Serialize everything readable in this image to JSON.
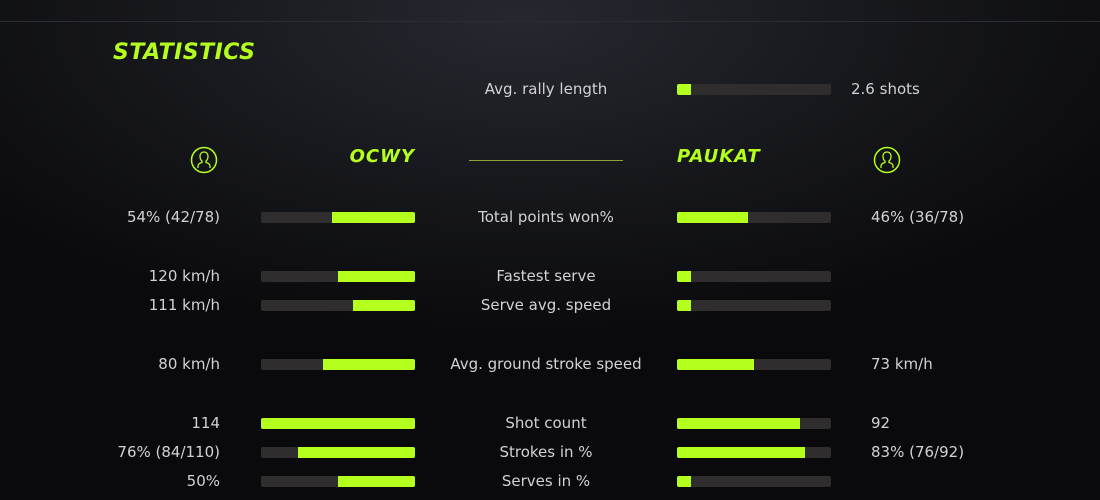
{
  "title": "STATISTICS",
  "accent": "#b4ff1e",
  "rally": {
    "label": "Avg. rally length",
    "value": "2.6 shots",
    "fill": 0.09
  },
  "players": {
    "left": {
      "name": "OCWY",
      "icon": "user-circle-icon"
    },
    "right": {
      "name": "PAUKAT",
      "icon": "user-circle-icon"
    }
  },
  "rows": [
    {
      "label": "Total points won%",
      "left": "54% (42/78)",
      "right": "46% (36/78)",
      "left_fill": 0.54,
      "right_fill": 0.46
    },
    {
      "label": "Fastest serve",
      "left": "120 km/h",
      "right": "",
      "left_fill": 0.5,
      "right_fill": 0.09
    },
    {
      "label": "Serve avg. speed",
      "left": "111 km/h",
      "right": "",
      "left_fill": 0.4,
      "right_fill": 0.09
    },
    {
      "label": "Avg. ground stroke speed",
      "left": "80 km/h",
      "right": "73 km/h",
      "left_fill": 0.6,
      "right_fill": 0.5
    },
    {
      "label": "Shot count",
      "left": "114",
      "right": "92",
      "left_fill": 1.0,
      "right_fill": 0.8
    },
    {
      "label": "Strokes in %",
      "left": "76% (84/110)",
      "right": "83% (76/92)",
      "left_fill": 0.76,
      "right_fill": 0.83
    },
    {
      "label": "Serves in %",
      "left": "50%",
      "right": "",
      "left_fill": 0.5,
      "right_fill": 0.09
    }
  ]
}
